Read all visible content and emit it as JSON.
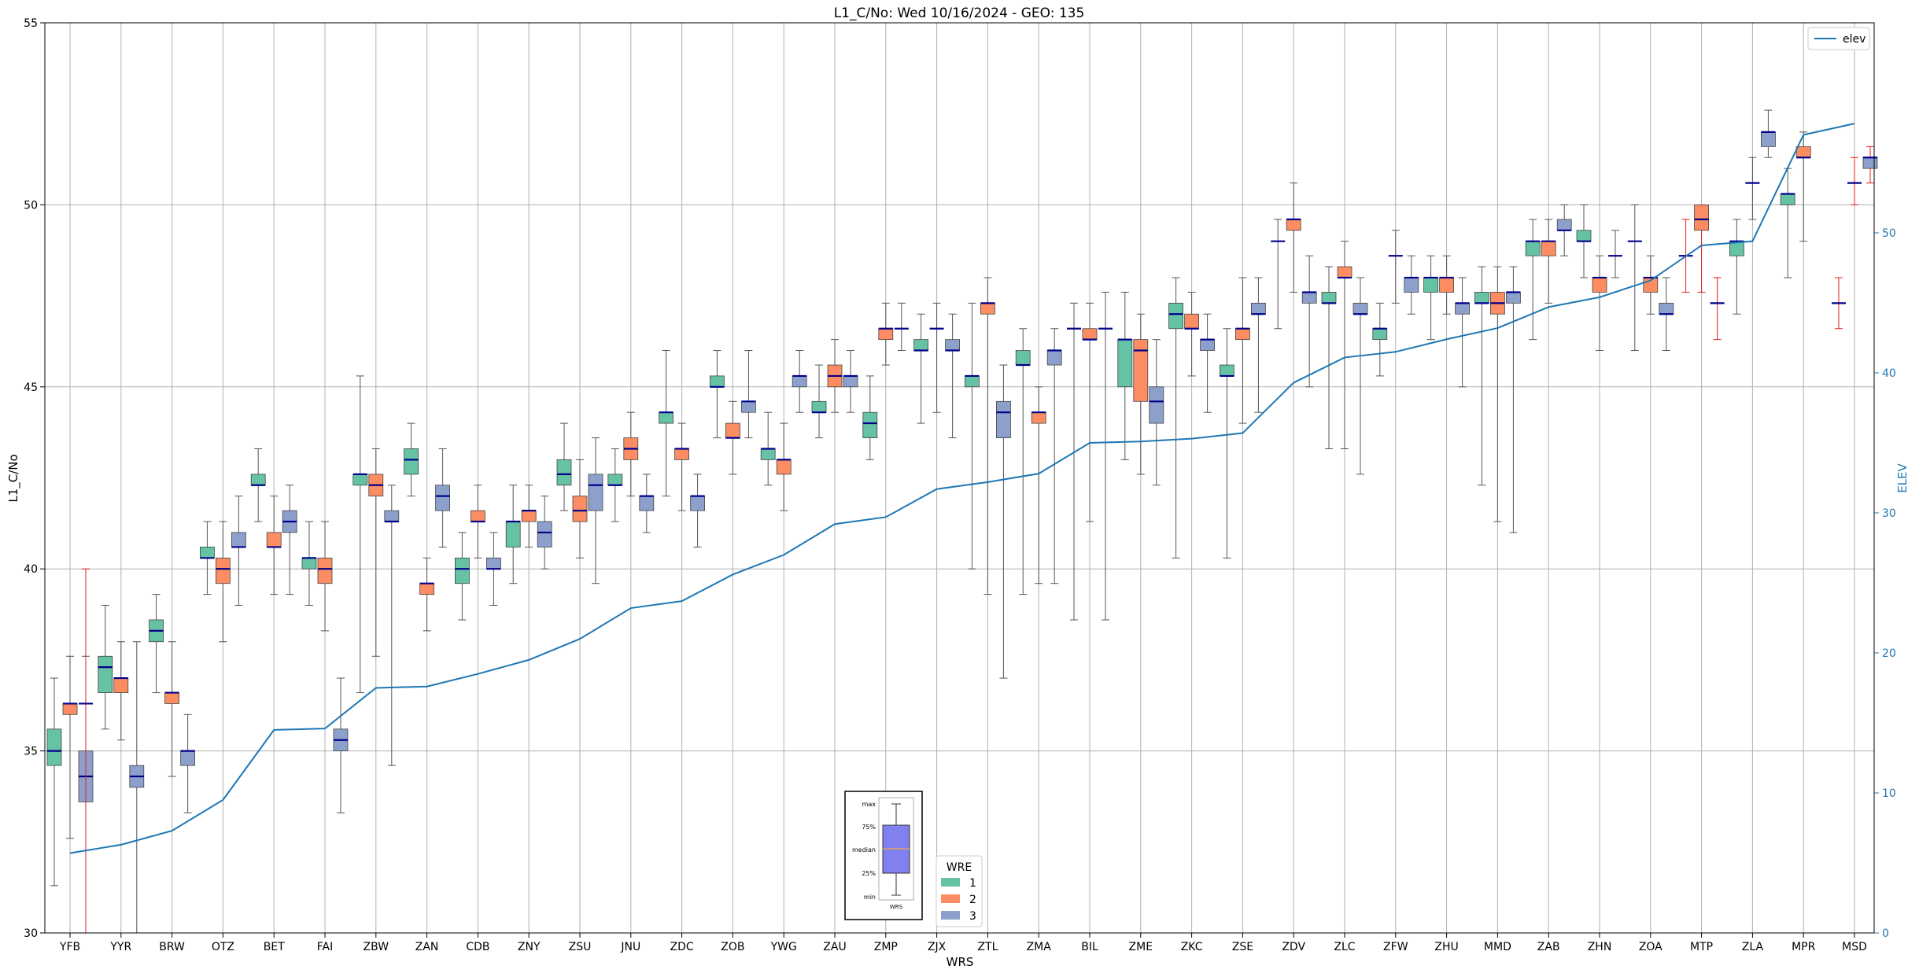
{
  "chart_data": {
    "type": "box",
    "title": "L1_C/No: Wed 10/16/2024 - GEO: 135",
    "xlabel": "WRS",
    "ylabel": "L1_C/No",
    "ylabel_right": "ELEV",
    "ylim": [
      30,
      55
    ],
    "ylim_right": [
      0,
      65
    ],
    "y_ticks": [
      30,
      35,
      40,
      45,
      50,
      55
    ],
    "y_ticks_right": [
      0,
      10,
      20,
      30,
      40,
      50
    ],
    "grid": true,
    "categories": [
      "YFB",
      "YYR",
      "BRW",
      "OTZ",
      "BET",
      "FAI",
      "ZBW",
      "ZAN",
      "CDB",
      "ZNY",
      "ZSU",
      "JNU",
      "ZDC",
      "ZOB",
      "YWG",
      "ZAU",
      "ZMP",
      "ZJX",
      "ZTL",
      "ZMA",
      "BIL",
      "ZME",
      "ZKC",
      "ZSE",
      "ZDV",
      "ZLC",
      "ZFW",
      "ZHU",
      "MMD",
      "ZAB",
      "ZHN",
      "ZOA",
      "MTP",
      "ZLA",
      "MPR",
      "MSD"
    ],
    "legend": {
      "title": "WRE",
      "entries": [
        "1",
        "2",
        "3"
      ],
      "colors": [
        "#66c2a5",
        "#fc8d62",
        "#8da0cb"
      ],
      "placement": "bottom-center"
    },
    "line_legend": {
      "label": "elev",
      "color": "#1f77b4",
      "placement": "top-right"
    },
    "boxes": [
      {
        "wrs": "YFB",
        "wre": 1,
        "min": 31.3,
        "q1": 34.6,
        "median": 35.0,
        "q3": 35.6,
        "max": 37.0
      },
      {
        "wrs": "YFB",
        "wre": 2,
        "min": 32.6,
        "q1": 36.0,
        "median": 36.3,
        "q3": 36.3,
        "max": 37.6
      },
      {
        "wrs": "YFB",
        "wre": 3,
        "min": 30.0,
        "q1": 33.6,
        "median": 34.3,
        "q3": 35.0,
        "max": 37.6
      },
      {
        "wrs": "YFB",
        "wre": 4,
        "min": 30.0,
        "q1": 36.3,
        "median": 36.3,
        "q3": 36.3,
        "max": 40.0,
        "red": true
      },
      {
        "wrs": "YYR",
        "wre": 1,
        "min": 35.6,
        "q1": 36.6,
        "median": 37.3,
        "q3": 37.6,
        "max": 39.0
      },
      {
        "wrs": "YYR",
        "wre": 2,
        "min": 35.3,
        "q1": 36.6,
        "median": 37.0,
        "q3": 37.0,
        "max": 38.0
      },
      {
        "wrs": "YYR",
        "wre": 3,
        "min": 30.0,
        "q1": 34.0,
        "median": 34.3,
        "q3": 34.6,
        "max": 38.0
      },
      {
        "wrs": "BRW",
        "wre": 1,
        "min": 36.6,
        "q1": 38.0,
        "median": 38.3,
        "q3": 38.6,
        "max": 39.3
      },
      {
        "wrs": "BRW",
        "wre": 2,
        "min": 34.3,
        "q1": 36.3,
        "median": 36.6,
        "q3": 36.6,
        "max": 38.0
      },
      {
        "wrs": "BRW",
        "wre": 3,
        "min": 33.3,
        "q1": 34.6,
        "median": 35.0,
        "q3": 35.0,
        "max": 36.0
      },
      {
        "wrs": "OTZ",
        "wre": 1,
        "min": 39.3,
        "q1": 40.3,
        "median": 40.3,
        "q3": 40.6,
        "max": 41.3
      },
      {
        "wrs": "OTZ",
        "wre": 2,
        "min": 38.0,
        "q1": 39.6,
        "median": 40.0,
        "q3": 40.3,
        "max": 41.3
      },
      {
        "wrs": "OTZ",
        "wre": 3,
        "min": 39.0,
        "q1": 40.6,
        "median": 40.6,
        "q3": 41.0,
        "max": 42.0
      },
      {
        "wrs": "BET",
        "wre": 1,
        "min": 41.3,
        "q1": 42.3,
        "median": 42.3,
        "q3": 42.6,
        "max": 43.3
      },
      {
        "wrs": "BET",
        "wre": 2,
        "min": 39.3,
        "q1": 40.6,
        "median": 40.6,
        "q3": 41.0,
        "max": 42.0
      },
      {
        "wrs": "BET",
        "wre": 3,
        "min": 39.3,
        "q1": 41.0,
        "median": 41.3,
        "q3": 41.6,
        "max": 42.3
      },
      {
        "wrs": "FAI",
        "wre": 1,
        "min": 39.0,
        "q1": 40.0,
        "median": 40.3,
        "q3": 40.3,
        "max": 41.3
      },
      {
        "wrs": "FAI",
        "wre": 2,
        "min": 38.3,
        "q1": 39.6,
        "median": 40.0,
        "q3": 40.3,
        "max": 41.3
      },
      {
        "wrs": "FAI",
        "wre": 3,
        "min": 33.3,
        "q1": 35.0,
        "median": 35.3,
        "q3": 35.6,
        "max": 37.0
      },
      {
        "wrs": "ZBW",
        "wre": 1,
        "min": 36.6,
        "q1": 42.3,
        "median": 42.6,
        "q3": 42.6,
        "max": 45.3
      },
      {
        "wrs": "ZBW",
        "wre": 2,
        "min": 37.6,
        "q1": 42.0,
        "median": 42.3,
        "q3": 42.6,
        "max": 43.3
      },
      {
        "wrs": "ZBW",
        "wre": 3,
        "min": 34.6,
        "q1": 41.3,
        "median": 41.3,
        "q3": 41.6,
        "max": 42.3
      },
      {
        "wrs": "ZAN",
        "wre": 1,
        "min": 42.0,
        "q1": 42.6,
        "median": 43.0,
        "q3": 43.3,
        "max": 44.0
      },
      {
        "wrs": "ZAN",
        "wre": 2,
        "min": 38.3,
        "q1": 39.3,
        "median": 39.6,
        "q3": 39.6,
        "max": 40.3
      },
      {
        "wrs": "ZAN",
        "wre": 3,
        "min": 40.6,
        "q1": 41.6,
        "median": 42.0,
        "q3": 42.3,
        "max": 43.3
      },
      {
        "wrs": "CDB",
        "wre": 1,
        "min": 38.6,
        "q1": 39.6,
        "median": 40.0,
        "q3": 40.3,
        "max": 41.0
      },
      {
        "wrs": "CDB",
        "wre": 2,
        "min": 40.3,
        "q1": 41.3,
        "median": 41.3,
        "q3": 41.6,
        "max": 42.3
      },
      {
        "wrs": "CDB",
        "wre": 3,
        "min": 39.0,
        "q1": 40.0,
        "median": 40.0,
        "q3": 40.3,
        "max": 41.0
      },
      {
        "wrs": "ZNY",
        "wre": 1,
        "min": 39.6,
        "q1": 40.6,
        "median": 41.3,
        "q3": 41.3,
        "max": 42.3
      },
      {
        "wrs": "ZNY",
        "wre": 2,
        "min": 40.6,
        "q1": 41.3,
        "median": 41.6,
        "q3": 41.6,
        "max": 42.3
      },
      {
        "wrs": "ZNY",
        "wre": 3,
        "min": 40.0,
        "q1": 40.6,
        "median": 41.0,
        "q3": 41.3,
        "max": 42.0
      },
      {
        "wrs": "ZSU",
        "wre": 1,
        "min": 41.6,
        "q1": 42.3,
        "median": 42.6,
        "q3": 43.0,
        "max": 44.0
      },
      {
        "wrs": "ZSU",
        "wre": 2,
        "min": 40.3,
        "q1": 41.3,
        "median": 41.6,
        "q3": 42.0,
        "max": 43.0
      },
      {
        "wrs": "ZSU",
        "wre": 3,
        "min": 39.6,
        "q1": 41.6,
        "median": 42.3,
        "q3": 42.6,
        "max": 43.6
      },
      {
        "wrs": "JNU",
        "wre": 1,
        "min": 41.3,
        "q1": 42.3,
        "median": 42.3,
        "q3": 42.6,
        "max": 43.3
      },
      {
        "wrs": "JNU",
        "wre": 2,
        "min": 42.0,
        "q1": 43.0,
        "median": 43.3,
        "q3": 43.6,
        "max": 44.3
      },
      {
        "wrs": "JNU",
        "wre": 3,
        "min": 41.0,
        "q1": 41.6,
        "median": 42.0,
        "q3": 42.0,
        "max": 42.6
      },
      {
        "wrs": "ZDC",
        "wre": 1,
        "min": 42.0,
        "q1": 44.0,
        "median": 44.3,
        "q3": 44.3,
        "max": 46.0
      },
      {
        "wrs": "ZDC",
        "wre": 2,
        "min": 41.6,
        "q1": 43.0,
        "median": 43.3,
        "q3": 43.3,
        "max": 44.0
      },
      {
        "wrs": "ZDC",
        "wre": 3,
        "min": 40.6,
        "q1": 41.6,
        "median": 42.0,
        "q3": 42.0,
        "max": 42.6
      },
      {
        "wrs": "ZOB",
        "wre": 1,
        "min": 43.6,
        "q1": 45.0,
        "median": 45.0,
        "q3": 45.3,
        "max": 46.0
      },
      {
        "wrs": "ZOB",
        "wre": 2,
        "min": 42.6,
        "q1": 43.6,
        "median": 43.6,
        "q3": 44.0,
        "max": 44.6
      },
      {
        "wrs": "ZOB",
        "wre": 3,
        "min": 43.6,
        "q1": 44.3,
        "median": 44.6,
        "q3": 44.6,
        "max": 46.0
      },
      {
        "wrs": "YWG",
        "wre": 1,
        "min": 42.3,
        "q1": 43.0,
        "median": 43.3,
        "q3": 43.3,
        "max": 44.3
      },
      {
        "wrs": "YWG",
        "wre": 2,
        "min": 41.6,
        "q1": 42.6,
        "median": 43.0,
        "q3": 43.0,
        "max": 44.0
      },
      {
        "wrs": "YWG",
        "wre": 3,
        "min": 44.3,
        "q1": 45.0,
        "median": 45.3,
        "q3": 45.3,
        "max": 46.0
      },
      {
        "wrs": "ZAU",
        "wre": 1,
        "min": 43.6,
        "q1": 44.3,
        "median": 44.3,
        "q3": 44.6,
        "max": 45.6
      },
      {
        "wrs": "ZAU",
        "wre": 2,
        "min": 44.3,
        "q1": 45.0,
        "median": 45.3,
        "q3": 45.6,
        "max": 46.3
      },
      {
        "wrs": "ZAU",
        "wre": 3,
        "min": 44.3,
        "q1": 45.0,
        "median": 45.3,
        "q3": 45.3,
        "max": 46.0
      },
      {
        "wrs": "ZMP",
        "wre": 1,
        "min": 43.0,
        "q1": 43.6,
        "median": 44.0,
        "q3": 44.3,
        "max": 45.3
      },
      {
        "wrs": "ZMP",
        "wre": 2,
        "min": 45.6,
        "q1": 46.3,
        "median": 46.6,
        "q3": 46.6,
        "max": 47.3
      },
      {
        "wrs": "ZMP",
        "wre": 3,
        "min": 46.0,
        "q1": 46.6,
        "median": 46.6,
        "q3": 46.6,
        "max": 47.3
      },
      {
        "wrs": "ZJX",
        "wre": 1,
        "min": 44.0,
        "q1": 46.0,
        "median": 46.0,
        "q3": 46.3,
        "max": 47.0
      },
      {
        "wrs": "ZJX",
        "wre": 2,
        "min": 44.3,
        "q1": 46.6,
        "median": 46.6,
        "q3": 46.6,
        "max": 47.3
      },
      {
        "wrs": "ZJX",
        "wre": 3,
        "min": 43.6,
        "q1": 46.0,
        "median": 46.0,
        "q3": 46.3,
        "max": 47.0
      },
      {
        "wrs": "ZTL",
        "wre": 1,
        "min": 40.0,
        "q1": 45.0,
        "median": 45.3,
        "q3": 45.3,
        "max": 47.3
      },
      {
        "wrs": "ZTL",
        "wre": 2,
        "min": 39.3,
        "q1": 47.0,
        "median": 47.3,
        "q3": 47.3,
        "max": 48.0
      },
      {
        "wrs": "ZTL",
        "wre": 3,
        "min": 37.0,
        "q1": 43.6,
        "median": 44.3,
        "q3": 44.6,
        "max": 45.6
      },
      {
        "wrs": "ZMA",
        "wre": 1,
        "min": 39.3,
        "q1": 45.6,
        "median": 45.6,
        "q3": 46.0,
        "max": 46.6
      },
      {
        "wrs": "ZMA",
        "wre": 2,
        "min": 39.6,
        "q1": 44.0,
        "median": 44.3,
        "q3": 44.3,
        "max": 45.0
      },
      {
        "wrs": "ZMA",
        "wre": 3,
        "min": 39.6,
        "q1": 45.6,
        "median": 46.0,
        "q3": 46.0,
        "max": 46.6
      },
      {
        "wrs": "BIL",
        "wre": 1,
        "min": 38.6,
        "q1": 46.6,
        "median": 46.6,
        "q3": 46.6,
        "max": 47.3
      },
      {
        "wrs": "BIL",
        "wre": 2,
        "min": 41.3,
        "q1": 46.3,
        "median": 46.3,
        "q3": 46.6,
        "max": 47.3
      },
      {
        "wrs": "BIL",
        "wre": 3,
        "min": 38.6,
        "q1": 46.6,
        "median": 46.6,
        "q3": 46.6,
        "max": 47.6
      },
      {
        "wrs": "ZME",
        "wre": 1,
        "min": 43.0,
        "q1": 45.0,
        "median": 46.3,
        "q3": 46.3,
        "max": 47.6
      },
      {
        "wrs": "ZME",
        "wre": 2,
        "min": 42.6,
        "q1": 44.6,
        "median": 46.0,
        "q3": 46.3,
        "max": 47.0
      },
      {
        "wrs": "ZME",
        "wre": 3,
        "min": 42.3,
        "q1": 44.0,
        "median": 44.6,
        "q3": 45.0,
        "max": 46.3
      },
      {
        "wrs": "ZKC",
        "wre": 1,
        "min": 40.3,
        "q1": 46.6,
        "median": 47.0,
        "q3": 47.3,
        "max": 48.0
      },
      {
        "wrs": "ZKC",
        "wre": 2,
        "min": 45.3,
        "q1": 46.6,
        "median": 46.6,
        "q3": 47.0,
        "max": 47.6
      },
      {
        "wrs": "ZKC",
        "wre": 3,
        "min": 44.3,
        "q1": 46.0,
        "median": 46.3,
        "q3": 46.3,
        "max": 47.0
      },
      {
        "wrs": "ZSE",
        "wre": 1,
        "min": 40.3,
        "q1": 45.3,
        "median": 45.3,
        "q3": 45.6,
        "max": 46.6
      },
      {
        "wrs": "ZSE",
        "wre": 2,
        "min": 44.0,
        "q1": 46.3,
        "median": 46.6,
        "q3": 46.6,
        "max": 48.0
      },
      {
        "wrs": "ZSE",
        "wre": 3,
        "min": 44.3,
        "q1": 47.0,
        "median": 47.0,
        "q3": 47.3,
        "max": 48.0
      },
      {
        "wrs": "ZDV",
        "wre": 1,
        "min": 46.6,
        "q1": 49.0,
        "median": 49.0,
        "q3": 49.0,
        "max": 49.6
      },
      {
        "wrs": "ZDV",
        "wre": 2,
        "min": 47.6,
        "q1": 49.3,
        "median": 49.6,
        "q3": 49.6,
        "max": 50.6
      },
      {
        "wrs": "ZDV",
        "wre": 3,
        "min": 45.0,
        "q1": 47.3,
        "median": 47.6,
        "q3": 47.6,
        "max": 48.6
      },
      {
        "wrs": "ZLC",
        "wre": 1,
        "min": 43.3,
        "q1": 47.3,
        "median": 47.3,
        "q3": 47.6,
        "max": 48.3
      },
      {
        "wrs": "ZLC",
        "wre": 2,
        "min": 43.3,
        "q1": 48.0,
        "median": 48.0,
        "q3": 48.3,
        "max": 49.0
      },
      {
        "wrs": "ZLC",
        "wre": 3,
        "min": 42.6,
        "q1": 47.0,
        "median": 47.0,
        "q3": 47.3,
        "max": 48.0
      },
      {
        "wrs": "ZFW",
        "wre": 1,
        "min": 45.3,
        "q1": 46.3,
        "median": 46.6,
        "q3": 46.6,
        "max": 47.3
      },
      {
        "wrs": "ZFW",
        "wre": 2,
        "min": 47.3,
        "q1": 48.6,
        "median": 48.6,
        "q3": 48.6,
        "max": 49.3
      },
      {
        "wrs": "ZFW",
        "wre": 3,
        "min": 47.0,
        "q1": 47.6,
        "median": 48.0,
        "q3": 48.0,
        "max": 48.6
      },
      {
        "wrs": "ZHU",
        "wre": 1,
        "min": 46.3,
        "q1": 47.6,
        "median": 48.0,
        "q3": 48.0,
        "max": 48.6
      },
      {
        "wrs": "ZHU",
        "wre": 2,
        "min": 47.0,
        "q1": 47.6,
        "median": 48.0,
        "q3": 48.0,
        "max": 48.6
      },
      {
        "wrs": "ZHU",
        "wre": 3,
        "min": 45.0,
        "q1": 47.0,
        "median": 47.3,
        "q3": 47.3,
        "max": 48.0
      },
      {
        "wrs": "MMD",
        "wre": 1,
        "min": 42.3,
        "q1": 47.3,
        "median": 47.3,
        "q3": 47.6,
        "max": 48.3
      },
      {
        "wrs": "MMD",
        "wre": 2,
        "min": 41.3,
        "q1": 47.0,
        "median": 47.3,
        "q3": 47.6,
        "max": 48.3
      },
      {
        "wrs": "MMD",
        "wre": 3,
        "min": 41.0,
        "q1": 47.3,
        "median": 47.6,
        "q3": 47.6,
        "max": 48.3
      },
      {
        "wrs": "ZAB",
        "wre": 1,
        "min": 46.3,
        "q1": 48.6,
        "median": 49.0,
        "q3": 49.0,
        "max": 49.6
      },
      {
        "wrs": "ZAB",
        "wre": 2,
        "min": 47.3,
        "q1": 48.6,
        "median": 49.0,
        "q3": 49.0,
        "max": 49.6
      },
      {
        "wrs": "ZAB",
        "wre": 3,
        "min": 48.6,
        "q1": 49.3,
        "median": 49.3,
        "q3": 49.6,
        "max": 50.0
      },
      {
        "wrs": "ZHN",
        "wre": 1,
        "min": 48.0,
        "q1": 49.0,
        "median": 49.0,
        "q3": 49.3,
        "max": 50.0
      },
      {
        "wrs": "ZHN",
        "wre": 2,
        "min": 46.0,
        "q1": 47.6,
        "median": 48.0,
        "q3": 48.0,
        "max": 48.6
      },
      {
        "wrs": "ZHN",
        "wre": 3,
        "min": 48.0,
        "q1": 48.6,
        "median": 48.6,
        "q3": 48.6,
        "max": 49.3
      },
      {
        "wrs": "ZOA",
        "wre": 1,
        "min": 46.0,
        "q1": 49.0,
        "median": 49.0,
        "q3": 49.0,
        "max": 50.0
      },
      {
        "wrs": "ZOA",
        "wre": 2,
        "min": 47.0,
        "q1": 47.6,
        "median": 48.0,
        "q3": 48.0,
        "max": 48.6
      },
      {
        "wrs": "ZOA",
        "wre": 3,
        "min": 46.0,
        "q1": 47.0,
        "median": 47.0,
        "q3": 47.3,
        "max": 48.0
      },
      {
        "wrs": "MTP",
        "wre": 1,
        "min": 47.6,
        "q1": 48.6,
        "median": 48.6,
        "q3": 48.6,
        "max": 49.6,
        "red": true
      },
      {
        "wrs": "MTP",
        "wre": 2,
        "min": 47.6,
        "q1": 49.3,
        "median": 49.6,
        "q3": 50.0,
        "max": 50.0,
        "red": true
      },
      {
        "wrs": "MTP",
        "wre": 3,
        "min": 46.3,
        "q1": 47.3,
        "median": 47.3,
        "q3": 47.3,
        "max": 48.0,
        "red": true
      },
      {
        "wrs": "ZLA",
        "wre": 1,
        "min": 47.0,
        "q1": 48.6,
        "median": 49.0,
        "q3": 49.0,
        "max": 49.6
      },
      {
        "wrs": "ZLA",
        "wre": 2,
        "min": 49.6,
        "q1": 50.6,
        "median": 50.6,
        "q3": 50.6,
        "max": 51.3
      },
      {
        "wrs": "ZLA",
        "wre": 3,
        "min": 51.3,
        "q1": 51.6,
        "median": 52.0,
        "q3": 52.0,
        "max": 52.6
      },
      {
        "wrs": "MPR",
        "wre": 1,
        "min": 48.0,
        "q1": 50.0,
        "median": 50.3,
        "q3": 50.3,
        "max": 51.0
      },
      {
        "wrs": "MPR",
        "wre": 2,
        "min": 49.0,
        "q1": 51.3,
        "median": 51.3,
        "q3": 51.6,
        "max": 52.0
      },
      {
        "wrs": "MSD",
        "wre": 1,
        "min": 46.6,
        "q1": 47.3,
        "median": 47.3,
        "q3": 47.3,
        "max": 48.0,
        "red": true
      },
      {
        "wrs": "MSD",
        "wre": 2,
        "min": 50.0,
        "q1": 50.6,
        "median": 50.6,
        "q3": 50.6,
        "max": 51.3,
        "red": true
      },
      {
        "wrs": "MSD",
        "wre": 3,
        "min": 50.6,
        "q1": 51.0,
        "median": 51.3,
        "q3": 51.3,
        "max": 51.6,
        "red": true
      }
    ],
    "elev_series": {
      "name": "elev",
      "color": "#1f77b4",
      "values": [
        5.7,
        6.3,
        7.3,
        9.5,
        14.5,
        14.6,
        17.5,
        17.6,
        18.5,
        19.5,
        21.0,
        23.2,
        23.7,
        25.6,
        27.0,
        29.2,
        29.7,
        31.7,
        32.2,
        32.8,
        35.0,
        35.1,
        35.3,
        35.7,
        39.3,
        41.1,
        41.5,
        42.4,
        43.2,
        44.7,
        45.4,
        46.6,
        49.1,
        49.4,
        57.0,
        57.8
      ]
    },
    "inset_legend": {
      "labels": [
        "max",
        "75%",
        "median",
        "25%",
        "min"
      ],
      "xlabel": "WRS"
    }
  }
}
